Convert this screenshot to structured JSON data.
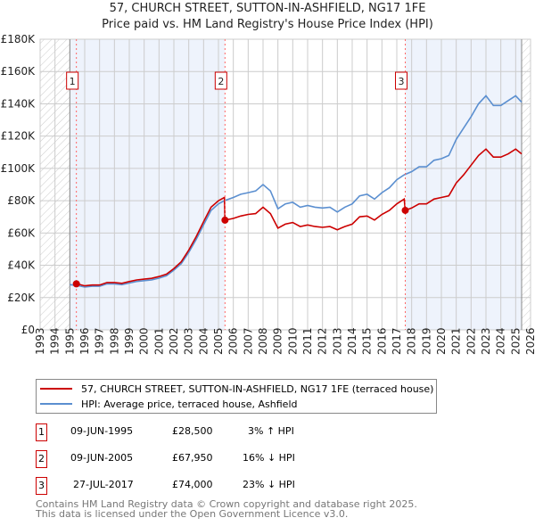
{
  "title": "57, CHURCH STREET, SUTTON-IN-ASHFIELD, NG17 1FE",
  "subtitle": "Price paid vs. HM Land Registry's House Price Index (HPI)",
  "legend": {
    "property": "57, CHURCH STREET, SUTTON-IN-ASHFIELD, NG17 1FE (terraced house)",
    "hpi": "HPI: Average price, terraced house, Ashfield"
  },
  "transactions": [
    {
      "num": "1",
      "date": "09-JUN-1995",
      "price": "£28,500",
      "change": "3% ↑ HPI"
    },
    {
      "num": "2",
      "date": "09-JUN-2005",
      "price": "£67,950",
      "change": "16% ↓ HPI"
    },
    {
      "num": "3",
      "date": "27-JUL-2017",
      "price": "£74,000",
      "change": "23% ↓ HPI"
    }
  ],
  "footer": {
    "line1": "Contains HM Land Registry data © Crown copyright and database right 2025.",
    "line2": "This data is licensed under the Open Government Licence v3.0."
  },
  "colors": {
    "property": "#cc0000",
    "hpi": "#5b8fd0",
    "band": "#eef3fc"
  },
  "chart_data": {
    "type": "line",
    "title": "57, CHURCH STREET, SUTTON-IN-ASHFIELD, NG17 1FE",
    "xlim": [
      1993,
      2026
    ],
    "ylim": [
      0,
      180000
    ],
    "x_ticks": [
      "1993",
      "1994",
      "1995",
      "1996",
      "1997",
      "1998",
      "1999",
      "2000",
      "2001",
      "2002",
      "2003",
      "2004",
      "2005",
      "2006",
      "2007",
      "2008",
      "2009",
      "2010",
      "2011",
      "2012",
      "2013",
      "2014",
      "2015",
      "2016",
      "2017",
      "2018",
      "2019",
      "2020",
      "2021",
      "2022",
      "2023",
      "2024",
      "2025",
      "2026"
    ],
    "y_ticks": [
      "£0",
      "£20K",
      "£40K",
      "£60K",
      "£80K",
      "£100K",
      "£120K",
      "£140K",
      "£160K",
      "£180K"
    ],
    "sales": [
      {
        "label": "1",
        "x": 1995.44,
        "y": 28500
      },
      {
        "label": "2",
        "x": 2005.44,
        "y": 67950
      },
      {
        "label": "3",
        "x": 2017.57,
        "y": 74000
      }
    ],
    "series": [
      {
        "name": "HPI: Average price, terraced house, Ashfield",
        "x": [
          1995,
          1995.5,
          1996,
          1996.5,
          1997,
          1997.5,
          1998,
          1998.5,
          1999,
          1999.5,
          2000,
          2000.5,
          2001,
          2001.5,
          2002,
          2002.5,
          2003,
          2003.5,
          2004,
          2004.5,
          2005,
          2005.4,
          2006,
          2006.5,
          2007,
          2007.5,
          2008,
          2008.5,
          2009,
          2009.5,
          2010,
          2010.5,
          2011,
          2011.5,
          2012,
          2012.5,
          2013,
          2013.5,
          2014,
          2014.5,
          2015,
          2015.5,
          2016,
          2016.5,
          2017,
          2017.5,
          2018,
          2018.5,
          2019,
          2019.5,
          2020,
          2020.5,
          2021,
          2021.5,
          2022,
          2022.5,
          2023,
          2023.5,
          2024,
          2024.5,
          2025,
          2025.4
        ],
        "y": [
          28000,
          27500,
          26500,
          27000,
          27000,
          28500,
          28500,
          28000,
          29000,
          30000,
          30500,
          31000,
          32000,
          33500,
          37000,
          41000,
          48000,
          56000,
          65000,
          74000,
          78000,
          80000,
          82000,
          84000,
          85000,
          86000,
          90000,
          86000,
          75000,
          78000,
          79000,
          76000,
          77000,
          76000,
          75500,
          76000,
          73000,
          76000,
          78000,
          83000,
          84000,
          81000,
          85000,
          88000,
          93000,
          96000,
          98000,
          101000,
          101000,
          105000,
          106000,
          108000,
          118000,
          125000,
          132000,
          140000,
          145000,
          139000,
          139000,
          142000,
          145000,
          141000
        ]
      },
      {
        "name": "57, CHURCH STREET, SUTTON-IN-ASHFIELD, NG17 1FE (terraced house)",
        "x": [
          1995.44,
          1995.5,
          1996,
          1996.5,
          1997,
          1997.5,
          1998,
          1998.5,
          1999,
          1999.5,
          2000,
          2000.5,
          2001,
          2001.5,
          2002,
          2002.5,
          2003,
          2003.5,
          2004,
          2004.5,
          2005,
          2005.4,
          2005.44,
          2006,
          2006.5,
          2007,
          2007.5,
          2008,
          2008.5,
          2009,
          2009.5,
          2010,
          2010.5,
          2011,
          2011.5,
          2012,
          2012.5,
          2013,
          2013.5,
          2014,
          2014.5,
          2015,
          2015.5,
          2016,
          2016.5,
          2017,
          2017.5,
          2017.57,
          2018,
          2018.5,
          2019,
          2019.5,
          2020,
          2020.5,
          2021,
          2021.5,
          2022,
          2022.5,
          2023,
          2023.5,
          2024,
          2024.5,
          2025,
          2025.4
        ],
        "y": [
          28500,
          28500,
          27300,
          27800,
          27800,
          29300,
          29300,
          28800,
          29900,
          30900,
          31400,
          31900,
          33000,
          34500,
          38000,
          42200,
          49400,
          57700,
          67000,
          76000,
          80000,
          82000,
          67950,
          69000,
          70500,
          71500,
          72000,
          76000,
          72000,
          63000,
          65500,
          66500,
          64000,
          65000,
          64000,
          63500,
          64000,
          62000,
          64000,
          65500,
          70000,
          70500,
          68000,
          71500,
          74000,
          78000,
          81000,
          74000,
          75500,
          78000,
          78000,
          81000,
          82000,
          83000,
          91000,
          96000,
          102000,
          108000,
          112000,
          107000,
          107000,
          109000,
          112000,
          109000
        ]
      }
    ]
  }
}
